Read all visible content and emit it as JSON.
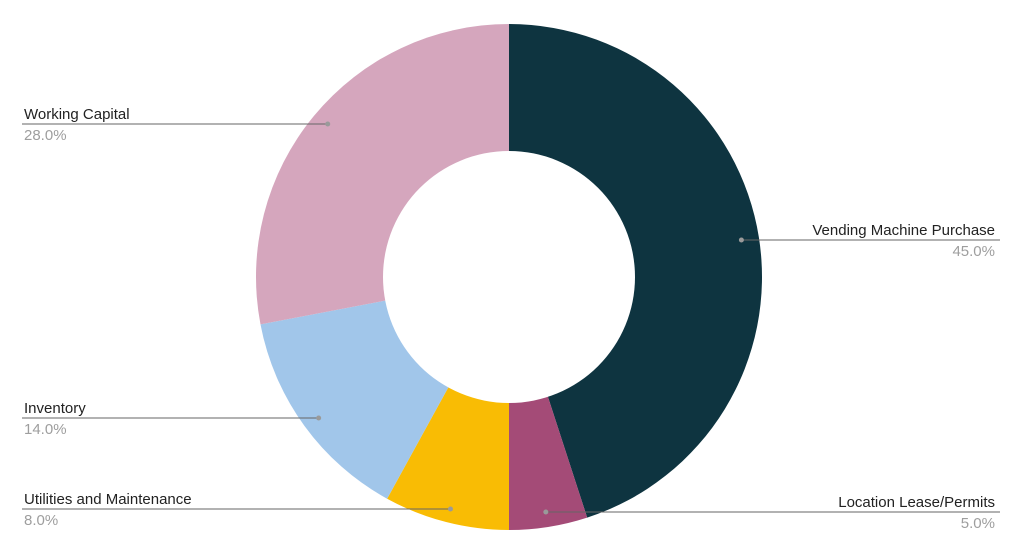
{
  "chart_data": {
    "type": "pie",
    "title": "",
    "donut": true,
    "legend": "none",
    "labels_position": "outside-with-leader-lines",
    "start_angle_deg": 0,
    "direction": "clockwise",
    "slices": [
      {
        "name": "Vending Machine Purchase",
        "value": 45.0,
        "label": "45.0%",
        "color": "#0e3440"
      },
      {
        "name": "Location Lease/Permits",
        "value": 5.0,
        "label": "5.0%",
        "color": "#a44b77"
      },
      {
        "name": "Utilities and Maintenance",
        "value": 8.0,
        "label": "8.0%",
        "color": "#f9bc04"
      },
      {
        "name": "Inventory",
        "value": 14.0,
        "label": "14.0%",
        "color": "#a1c6ea"
      },
      {
        "name": "Working Capital",
        "value": 28.0,
        "label": "28.0%",
        "color": "#d5a6bd"
      }
    ]
  }
}
